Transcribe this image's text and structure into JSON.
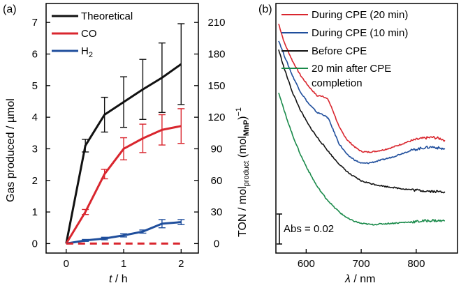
{
  "panel_a": {
    "label": "(a)",
    "chart_data": {
      "type": "line",
      "xlabel_var": "t",
      "xlabel_unit": " / h",
      "ylabel_left": "Gas produced / µmol",
      "ylabel_right_main": "TON / mol",
      "ylabel_right_sub1": "product",
      "ylabel_right_mid": " (mol",
      "ylabel_right_sub2": "MnP",
      "ylabel_right_end": ")",
      "ylabel_right_sup": "−1",
      "xlim": [
        -0.35,
        2.3
      ],
      "ylim": [
        -0.3,
        7.6
      ],
      "x_ticks": [
        0,
        1,
        2
      ],
      "y_ticks_left": [
        0,
        1,
        2,
        3,
        4,
        5,
        6,
        7
      ],
      "y_ticks_right": [
        0,
        30,
        60,
        90,
        120,
        150,
        180,
        210
      ],
      "series": [
        {
          "name": "Theoretical",
          "color": "#111111",
          "style": "solid",
          "x": [
            0,
            0.333,
            0.667,
            1,
            1.333,
            1.667,
            2
          ],
          "y": [
            0,
            3.1,
            4.08,
            4.48,
            4.88,
            5.25,
            5.68
          ],
          "err": [
            0,
            0.2,
            0.55,
            0.8,
            0.95,
            1.1,
            1.28
          ]
        },
        {
          "name": "CO",
          "color": "#d9262e",
          "style": "solid",
          "x": [
            0,
            0.333,
            0.667,
            1,
            1.333,
            1.667,
            2
          ],
          "y": [
            0,
            1.0,
            2.2,
            3.0,
            3.33,
            3.6,
            3.72
          ],
          "err": [
            0,
            0.08,
            0.15,
            0.35,
            0.45,
            0.48,
            0.55
          ]
        },
        {
          "name": "H",
          "name_sub": "2",
          "color": "#1f4e9c",
          "style": "solid",
          "x": [
            0,
            0.333,
            0.667,
            1,
            1.333,
            1.667,
            2
          ],
          "y": [
            0,
            0.1,
            0.16,
            0.26,
            0.38,
            0.63,
            0.68
          ],
          "err": [
            0,
            0.03,
            0.04,
            0.05,
            0.05,
            0.13,
            0.08
          ]
        },
        {
          "color": "#d9262e",
          "style": "dashed",
          "x": [
            0,
            2
          ],
          "y": [
            0,
            0
          ]
        }
      ]
    }
  },
  "panel_b": {
    "label": "(b)",
    "chart_data": {
      "type": "line",
      "xlabel_var": "λ",
      "xlabel_unit": " / nm",
      "xlim": [
        545,
        875
      ],
      "x_ticks": [
        600,
        700,
        800
      ],
      "scale_bar_label": "Abs = 0.02",
      "scale_bar_value": 0.02,
      "series": [
        {
          "name": "During CPE (20 min)",
          "color": "#d9262e",
          "x": [
            550,
            560,
            575,
            590,
            605,
            620,
            630,
            640,
            650,
            660,
            675,
            690,
            700,
            712,
            725,
            740,
            755,
            770,
            785,
            800,
            815,
            830,
            845,
            852
          ],
          "y": [
            0.1645,
            0.1595,
            0.1545,
            0.1505,
            0.1475,
            0.145,
            0.145,
            0.144,
            0.1405,
            0.1365,
            0.133,
            0.131,
            0.13,
            0.1298,
            0.13,
            0.1304,
            0.131,
            0.1318,
            0.1326,
            0.1332,
            0.1336,
            0.1338,
            0.1334,
            0.133
          ]
        },
        {
          "name": "During CPE (10 min)",
          "color": "#1f4e9c",
          "x": [
            550,
            560,
            575,
            590,
            605,
            620,
            630,
            640,
            650,
            660,
            675,
            690,
            700,
            712,
            725,
            740,
            755,
            770,
            785,
            800,
            815,
            830,
            845,
            852
          ],
          "y": [
            0.16,
            0.156,
            0.1505,
            0.146,
            0.1428,
            0.1405,
            0.14,
            0.139,
            0.1355,
            0.132,
            0.129,
            0.1275,
            0.1268,
            0.1268,
            0.1272,
            0.1278,
            0.1284,
            0.1292,
            0.13,
            0.1306,
            0.131,
            0.1312,
            0.1308,
            0.1306
          ]
        },
        {
          "name": "Before CPE",
          "color": "#111111",
          "x": [
            550,
            560,
            575,
            590,
            605,
            620,
            635,
            650,
            665,
            680,
            700,
            720,
            740,
            760,
            780,
            800,
            820,
            840,
            852
          ],
          "y": [
            0.1575,
            0.1525,
            0.146,
            0.141,
            0.137,
            0.1338,
            0.131,
            0.1282,
            0.1258,
            0.1238,
            0.122,
            0.1212,
            0.1206,
            0.1202,
            0.1198,
            0.1195,
            0.1193,
            0.1191,
            0.1191
          ]
        },
        {
          "name": "20 min after CPE",
          "name_line2": "completion",
          "color": "#1a8a4a",
          "x": [
            550,
            560,
            575,
            590,
            605,
            620,
            635,
            650,
            665,
            680,
            700,
            720,
            740,
            760,
            780,
            800,
            815,
            830,
            845,
            852
          ],
          "y": [
            0.146,
            0.141,
            0.1345,
            0.129,
            0.1245,
            0.1205,
            0.1175,
            0.115,
            0.113,
            0.1115,
            0.1105,
            0.1102,
            0.1104,
            0.1106,
            0.1108,
            0.111,
            0.1112,
            0.1113,
            0.1112,
            0.1112
          ]
        }
      ]
    }
  }
}
